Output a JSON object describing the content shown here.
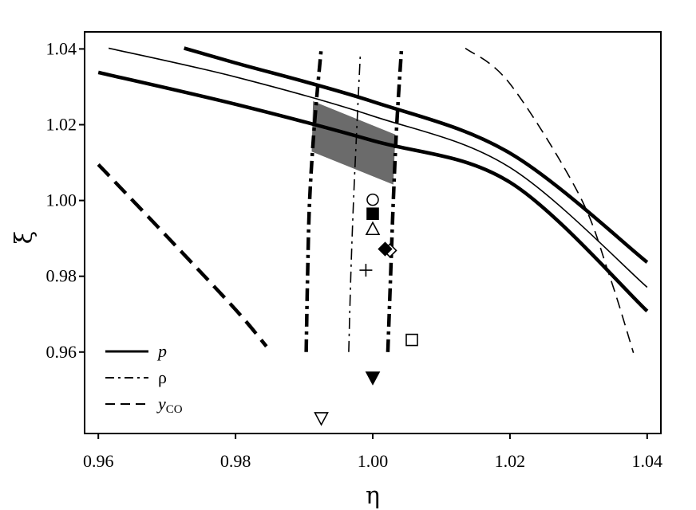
{
  "chart_data": {
    "type": "line",
    "xlabel": "η",
    "ylabel": "ξ",
    "xlim": [
      0.958,
      1.042
    ],
    "ylim": [
      0.9385,
      1.0445
    ],
    "x_ticks": [
      0.96,
      0.98,
      1.0,
      1.02,
      1.04
    ],
    "y_ticks": [
      0.96,
      0.98,
      1.0,
      1.02,
      1.04
    ],
    "x_tick_labels": [
      "0.96",
      "0.98",
      "1.00",
      "1.02",
      "1.04"
    ],
    "y_tick_labels": [
      "0.96",
      "0.98",
      "1.00",
      "1.02",
      "1.04"
    ],
    "grid": false,
    "legend_position": "bottom-left",
    "legend": [
      {
        "style": "solid",
        "label": "p"
      },
      {
        "style": "dashdot",
        "label": "ρ"
      },
      {
        "style": "dashed",
        "label": "y",
        "label_sub": "CO"
      }
    ],
    "series": [
      {
        "style": "solid",
        "weight": "thick",
        "points": [
          [
            0.96,
            1.0338
          ],
          [
            0.98,
            1.0254
          ],
          [
            1.0,
            1.0158
          ],
          [
            1.02,
            1.0048
          ],
          [
            1.04,
            0.9708
          ]
        ]
      },
      {
        "style": "solid",
        "weight": "thin",
        "points": [
          [
            0.9615,
            1.0402
          ],
          [
            0.98,
            1.0326
          ],
          [
            1.0,
            1.0223
          ],
          [
            1.02,
            1.0087
          ],
          [
            1.04,
            0.9771
          ]
        ]
      },
      {
        "style": "solid",
        "weight": "thick",
        "points": [
          [
            0.9725,
            1.0402
          ],
          [
            0.98,
            1.0363
          ],
          [
            1.0,
            1.0261
          ],
          [
            1.02,
            1.0125
          ],
          [
            1.04,
            0.9837
          ]
        ]
      },
      {
        "style": "dashed",
        "weight": "thick",
        "points": [
          [
            0.96,
            1.0095
          ],
          [
            0.97,
            0.9905
          ],
          [
            0.98,
            0.9712
          ],
          [
            0.9845,
            0.9615
          ]
        ]
      },
      {
        "style": "dashdot",
        "weight": "thick",
        "points": [
          [
            0.9903,
            0.96
          ],
          [
            0.9905,
            0.98
          ],
          [
            0.9908,
            1.0
          ],
          [
            0.9915,
            1.02
          ],
          [
            0.9925,
            1.0402
          ]
        ]
      },
      {
        "style": "dashdot",
        "weight": "thin",
        "points": [
          [
            0.9965,
            0.96
          ],
          [
            0.9968,
            0.98
          ],
          [
            0.9972,
            1.0
          ],
          [
            0.9977,
            1.02
          ],
          [
            0.9982,
            1.039
          ]
        ]
      },
      {
        "style": "dashdot",
        "weight": "thick",
        "points": [
          [
            1.0022,
            0.96
          ],
          [
            1.0026,
            0.98
          ],
          [
            1.003,
            1.0
          ],
          [
            1.0035,
            1.02
          ],
          [
            1.0042,
            1.0402
          ]
        ]
      },
      {
        "style": "dashed",
        "weight": "thin",
        "points": [
          [
            1.0135,
            1.0402
          ],
          [
            1.02,
            1.0308
          ],
          [
            1.03,
            1.0018
          ],
          [
            1.0345,
            0.9802
          ],
          [
            1.038,
            0.9598
          ]
        ]
      }
    ],
    "shaded_region": [
      [
        0.9913,
        1.0262
      ],
      [
        1.0033,
        1.0174
      ],
      [
        1.003,
        1.0042
      ],
      [
        0.9911,
        1.0129
      ]
    ],
    "markers": [
      {
        "shape": "circle-open",
        "x": 1.0,
        "y": 1.0002
      },
      {
        "shape": "square-filled",
        "x": 1.0,
        "y": 0.9965
      },
      {
        "shape": "triangle-up-open",
        "x": 1.0,
        "y": 0.9925
      },
      {
        "shape": "diamond-open",
        "x": 1.0025,
        "y": 0.9868
      },
      {
        "shape": "diamond-filled",
        "x": 1.0018,
        "y": 0.9872
      },
      {
        "shape": "plus",
        "x": 0.999,
        "y": 0.9816
      },
      {
        "shape": "square-open",
        "x": 1.0057,
        "y": 0.9632
      },
      {
        "shape": "triangle-down-filled",
        "x": 1.0,
        "y": 0.9532
      },
      {
        "shape": "triangle-down-open",
        "x": 0.9925,
        "y": 0.9425
      }
    ]
  }
}
